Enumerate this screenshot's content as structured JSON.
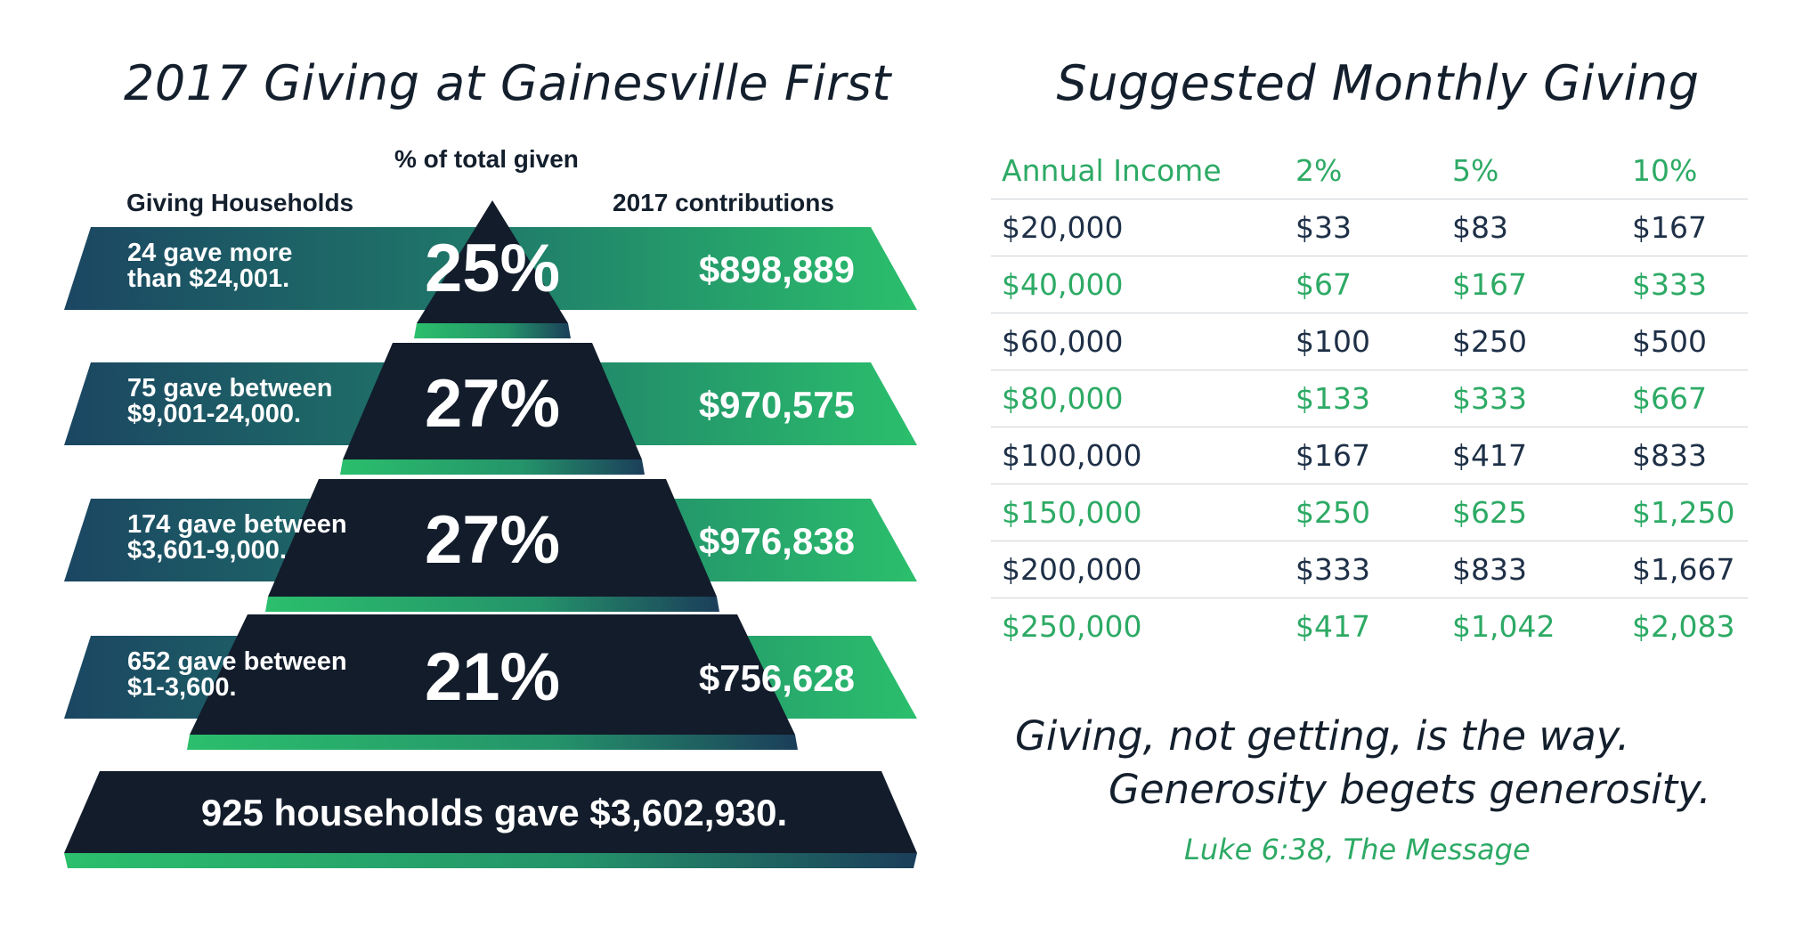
{
  "titles": {
    "left": "2017 Giving at Gainesville First",
    "right": "Suggested Monthly Giving"
  },
  "headers": {
    "percent": "% of total given",
    "households": "Giving Households",
    "contributions": "2017 contributions"
  },
  "chart_data": {
    "type": "pyramid",
    "title": "2017 Giving at Gainesville First",
    "tiers": [
      {
        "households_line1": "24 gave more",
        "households_line2": "than $24,001.",
        "households": 24,
        "percent_label": "25%",
        "percent": 25,
        "amount_label": "$898,889",
        "amount": 898889
      },
      {
        "households_line1": "75 gave between",
        "households_line2": "$9,001-24,000.",
        "households": 75,
        "percent_label": "27%",
        "percent": 27,
        "amount_label": "$970,575",
        "amount": 970575
      },
      {
        "households_line1": "174 gave between",
        "households_line2": "$3,601-9,000.",
        "households": 174,
        "percent_label": "27%",
        "percent": 27,
        "amount_label": "$976,838",
        "amount": 976838
      },
      {
        "households_line1": "652 gave between",
        "households_line2": "$1-3,600.",
        "households": 652,
        "percent_label": "21%",
        "percent": 21,
        "amount_label": "$756,628",
        "amount": 756628
      }
    ],
    "total": {
      "label": "925 households gave $3,602,930.",
      "households": 925,
      "amount": 3602930
    }
  },
  "table": {
    "columns": [
      "Annual Income",
      "2%",
      "5%",
      "10%"
    ],
    "rows": [
      [
        "$20,000",
        "$33",
        "$83",
        "$167"
      ],
      [
        "$40,000",
        "$67",
        "$167",
        "$333"
      ],
      [
        "$60,000",
        "$100",
        "$250",
        "$500"
      ],
      [
        "$80,000",
        "$133",
        "$333",
        "$667"
      ],
      [
        "$100,000",
        "$167",
        "$417",
        "$833"
      ],
      [
        "$150,000",
        "$250",
        "$625",
        "$1,250"
      ],
      [
        "$200,000",
        "$333",
        "$833",
        "$1,667"
      ],
      [
        "$250,000",
        "$417",
        "$1,042",
        "$2,083"
      ]
    ]
  },
  "quote": {
    "line1": "Giving, not getting, is the way.",
    "line2": "Generosity begets generosity.",
    "citation": "Luke 6:38, The Message"
  },
  "colors": {
    "navy": "#121c2b",
    "teal": "#1c4a63",
    "green": "#2ab56a",
    "text_green": "#2daa65",
    "text_dark": "#1e3047"
  }
}
